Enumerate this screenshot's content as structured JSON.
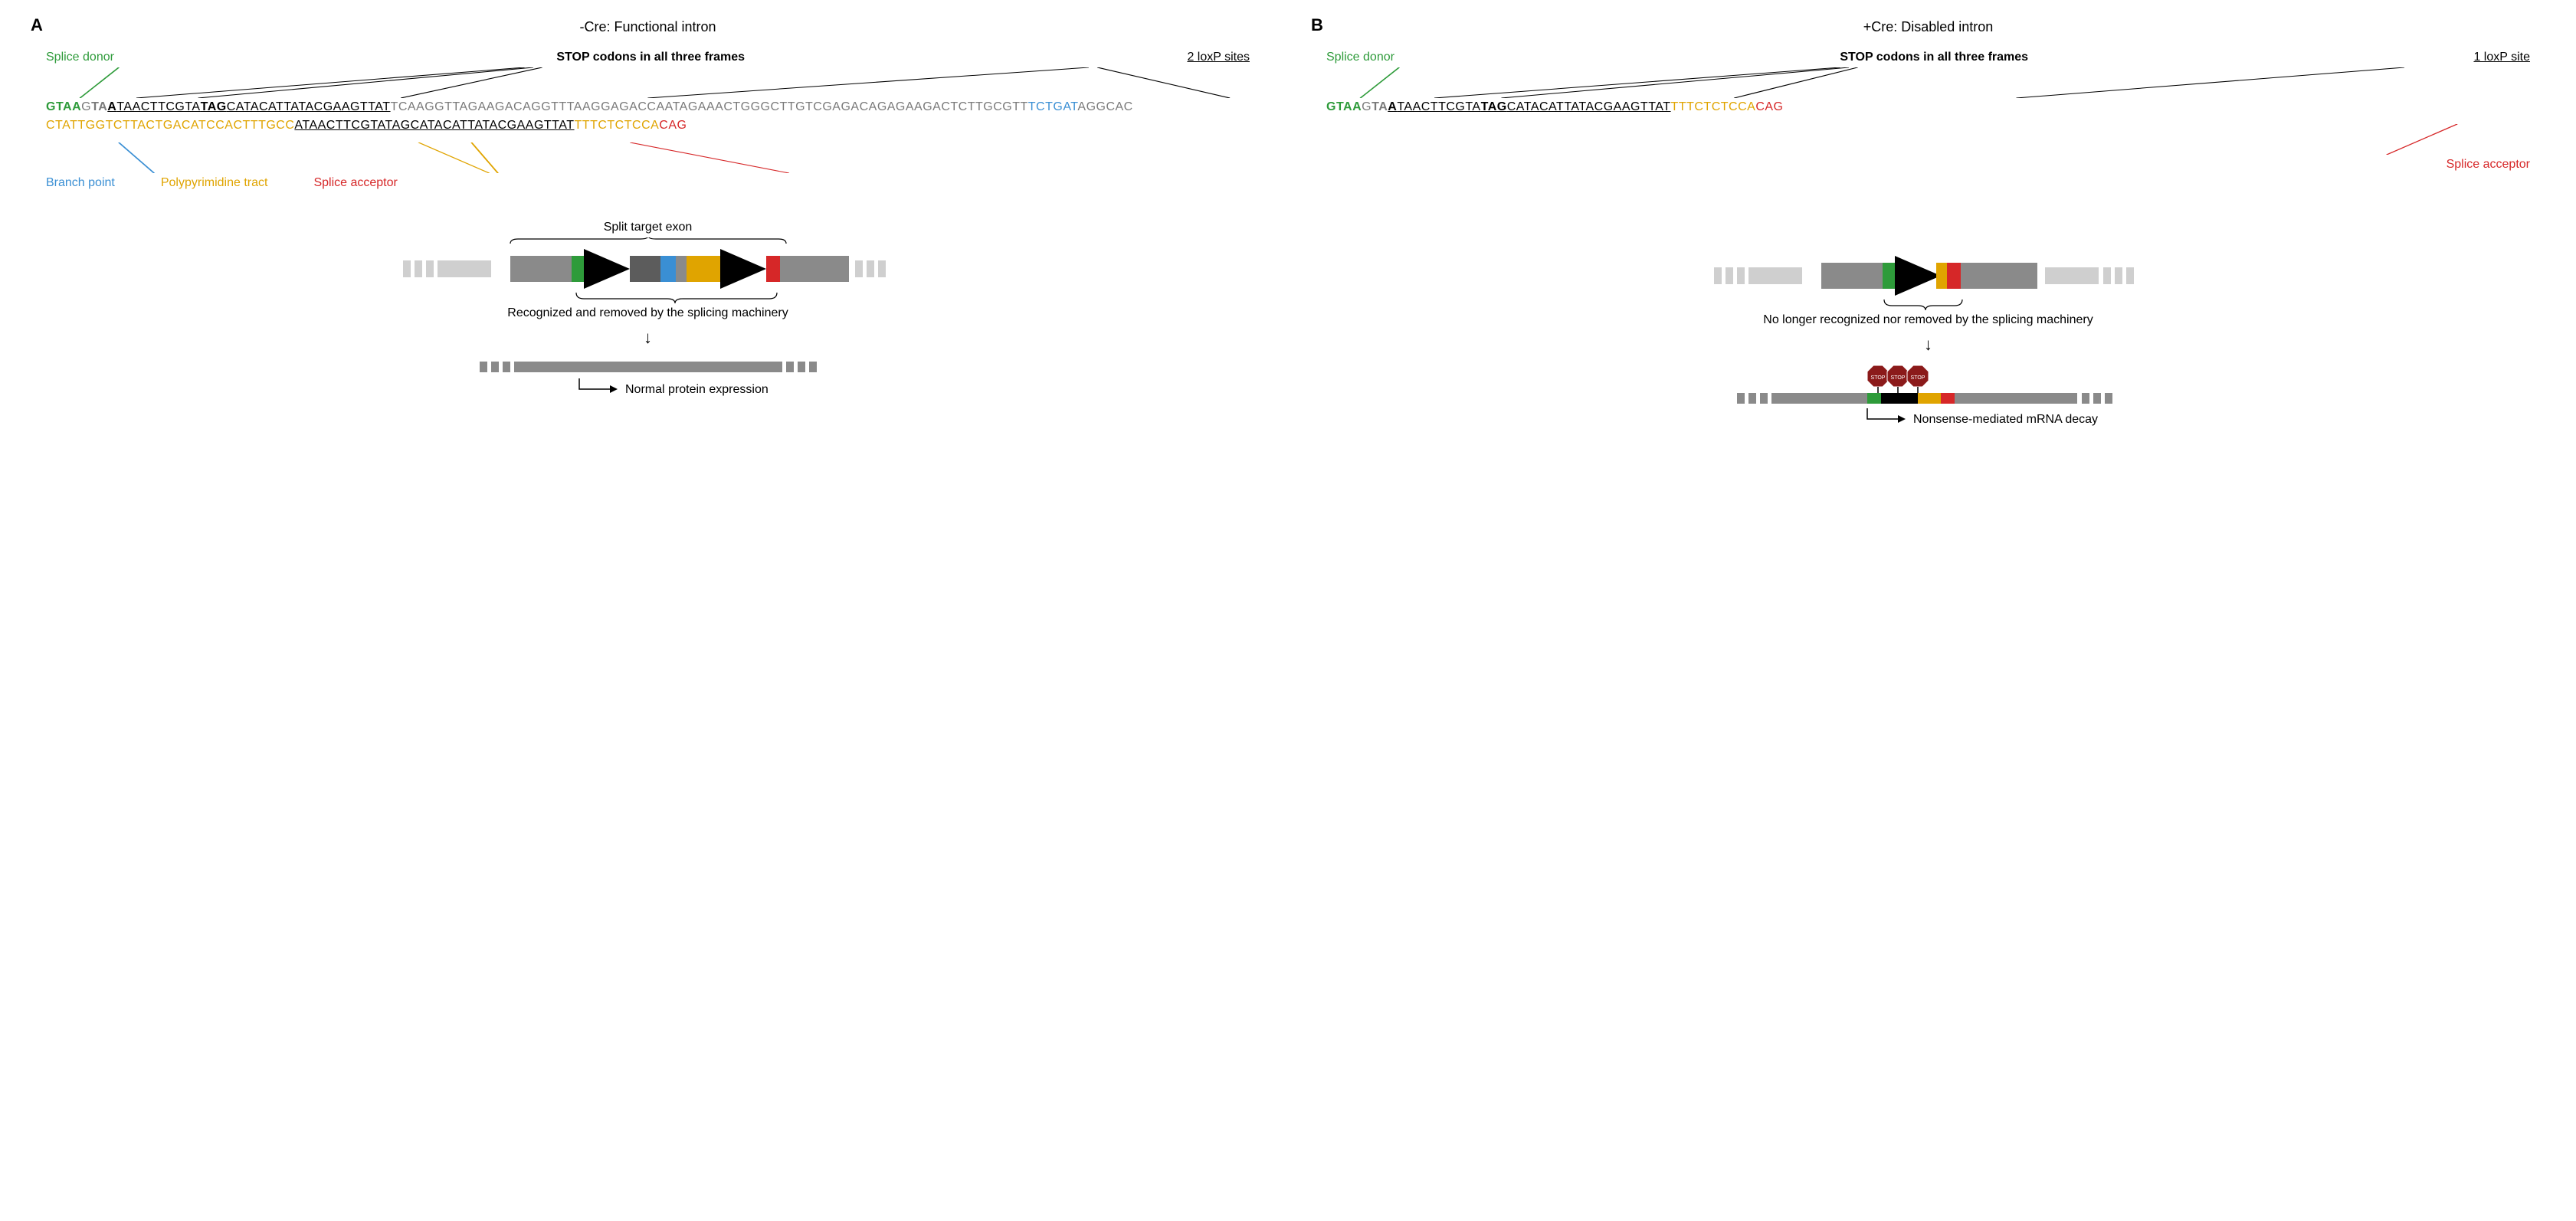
{
  "colors": {
    "splice_donor": "#2e9b3a",
    "branch_point": "#3a8fd4",
    "polypyrimidine": "#e0a400",
    "splice_acceptor": "#d62728",
    "grey_text": "#7a7a7a",
    "black": "#000000",
    "light_grey_box": "#cfcfcf",
    "mid_grey_box": "#8a8a8a",
    "dark_grey_box": "#5c5c5c",
    "stop_sign": "#8b1a1a",
    "stop_text": "#ffffff"
  },
  "panels": {
    "A": {
      "label": "A",
      "title": "-Cre: Functional intron",
      "callouts_top": {
        "splice_donor": "Splice donor",
        "stop": "STOP codons in all three frames",
        "loxp": "2 loxP sites"
      },
      "callouts_bottom": {
        "branch": "Branch point",
        "ppt": "Polypyrimidine tract",
        "acceptor": "Splice acceptor"
      },
      "diagram_top_label": "Split target exon",
      "diagram_bottom_label": "Recognized and removed by the splicing machinery",
      "outcome": "Normal protein expression"
    },
    "B": {
      "label": "B",
      "title": "+Cre: Disabled intron",
      "callouts_top": {
        "splice_donor": "Splice donor",
        "stop": "STOP codons in all three frames",
        "loxp": "1 loxP site"
      },
      "callouts_bottom": {
        "acceptor": "Splice acceptor"
      },
      "diagram_bottom_label": "No longer recognized nor removed by the splicing machinery",
      "outcome": "Nonsense-mediated mRNA decay"
    }
  },
  "sequence_A": [
    {
      "t": "G",
      "c": "splice_donor",
      "b": true
    },
    {
      "t": "TAA",
      "c": "splice_donor",
      "b": true
    },
    {
      "t": "G",
      "c": "grey_text"
    },
    {
      "t": "TA",
      "c": "grey_text",
      "b": true
    },
    {
      "t": "A",
      "c": "black",
      "b": true,
      "u": true
    },
    {
      "t": "TAACTTCGTA",
      "c": "black",
      "u": true
    },
    {
      "t": "TAG",
      "c": "black",
      "b": true,
      "u": true
    },
    {
      "t": "CATACATTATACGAAGTTAT",
      "c": "black",
      "u": true
    },
    {
      "t": "TCAAGGTTAGAAGACA",
      "c": "grey_text"
    },
    {
      "t": "GGTTTAAGGAGACCAATAGAAACTGGGCTTGTCGAGACAGAGAAGACTCTTGCGTT",
      "c": "grey_text"
    },
    {
      "t": "TCTGAT",
      "c": "branch_point"
    },
    {
      "t": "AGGCAC",
      "c": "grey_text"
    },
    {
      "t": "CTATTGGTCTTACTGACATCCACTTTGCC",
      "c": "polypyrimidine"
    },
    {
      "t": "ATAACTTCGTATAGCATACATTATACGAAGTTAT",
      "c": "black",
      "u": true
    },
    {
      "t": "TTTCTCTCCA",
      "c": "polypyrimidine"
    },
    {
      "t": "CAG",
      "c": "splice_acceptor"
    }
  ],
  "sequence_B": [
    {
      "t": "G",
      "c": "splice_donor",
      "b": true
    },
    {
      "t": "TAA",
      "c": "splice_donor",
      "b": true
    },
    {
      "t": "G",
      "c": "grey_text"
    },
    {
      "t": "TA",
      "c": "grey_text",
      "b": true
    },
    {
      "t": "A",
      "c": "black",
      "b": true,
      "u": true
    },
    {
      "t": "TAACTTCGTA",
      "c": "black",
      "u": true
    },
    {
      "t": "TAG",
      "c": "black",
      "b": true,
      "u": true
    },
    {
      "t": "CATACATTATACGAAGTTAT",
      "c": "black",
      "u": true
    },
    {
      "t": "TTTCTCTCCA",
      "c": "polypyrimidine"
    },
    {
      "t": "CAG",
      "c": "splice_acceptor"
    }
  ],
  "diagram_style": {
    "exon_height": 28,
    "mrna_height": 14,
    "triangle_size": 40
  }
}
